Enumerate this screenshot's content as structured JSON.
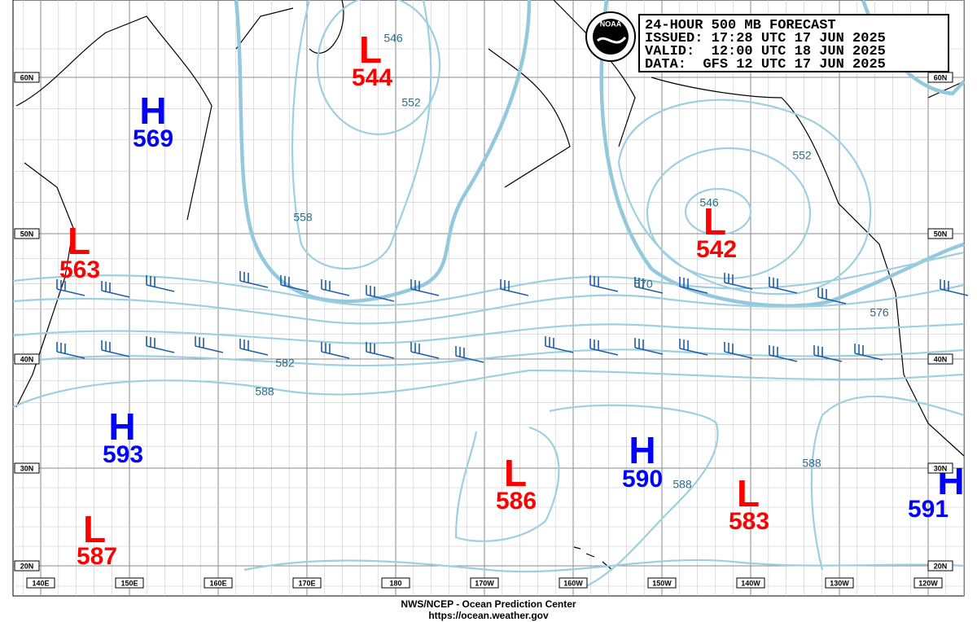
{
  "header": {
    "lines": [
      "24-HOUR 500 MB FORECAST",
      "ISSUED: 17:28 UTC 17 JUN 2025",
      "VALID:  12:00 UTC 18 JUN 2025",
      "DATA:  GFS 12 UTC 17 JUN 2025"
    ],
    "logo": "NOAA"
  },
  "centers": [
    {
      "type": "H",
      "value": "569"
    },
    {
      "type": "L",
      "value": "544"
    },
    {
      "type": "L",
      "value": "563"
    },
    {
      "type": "L",
      "value": "542"
    },
    {
      "type": "H",
      "value": "593"
    },
    {
      "type": "L",
      "value": "586"
    },
    {
      "type": "H",
      "value": "590"
    },
    {
      "type": "L",
      "value": "583"
    },
    {
      "type": "H",
      "value": "591"
    },
    {
      "type": "L",
      "value": "587"
    }
  ],
  "contour_labels": [
    "546",
    "552",
    "558",
    "570",
    "576",
    "582",
    "588",
    "588",
    "588",
    "546",
    "552"
  ],
  "lat_labels": [
    "60N",
    "50N",
    "40N",
    "30N",
    "20N"
  ],
  "lon_labels": [
    "140E",
    "150E",
    "160E",
    "170E",
    "180",
    "170W",
    "160W",
    "150W",
    "140W",
    "130W",
    "120W"
  ],
  "footer": [
    "NWS/NCEP - Ocean Prediction Center",
    "https://ocean.weather.gov"
  ]
}
